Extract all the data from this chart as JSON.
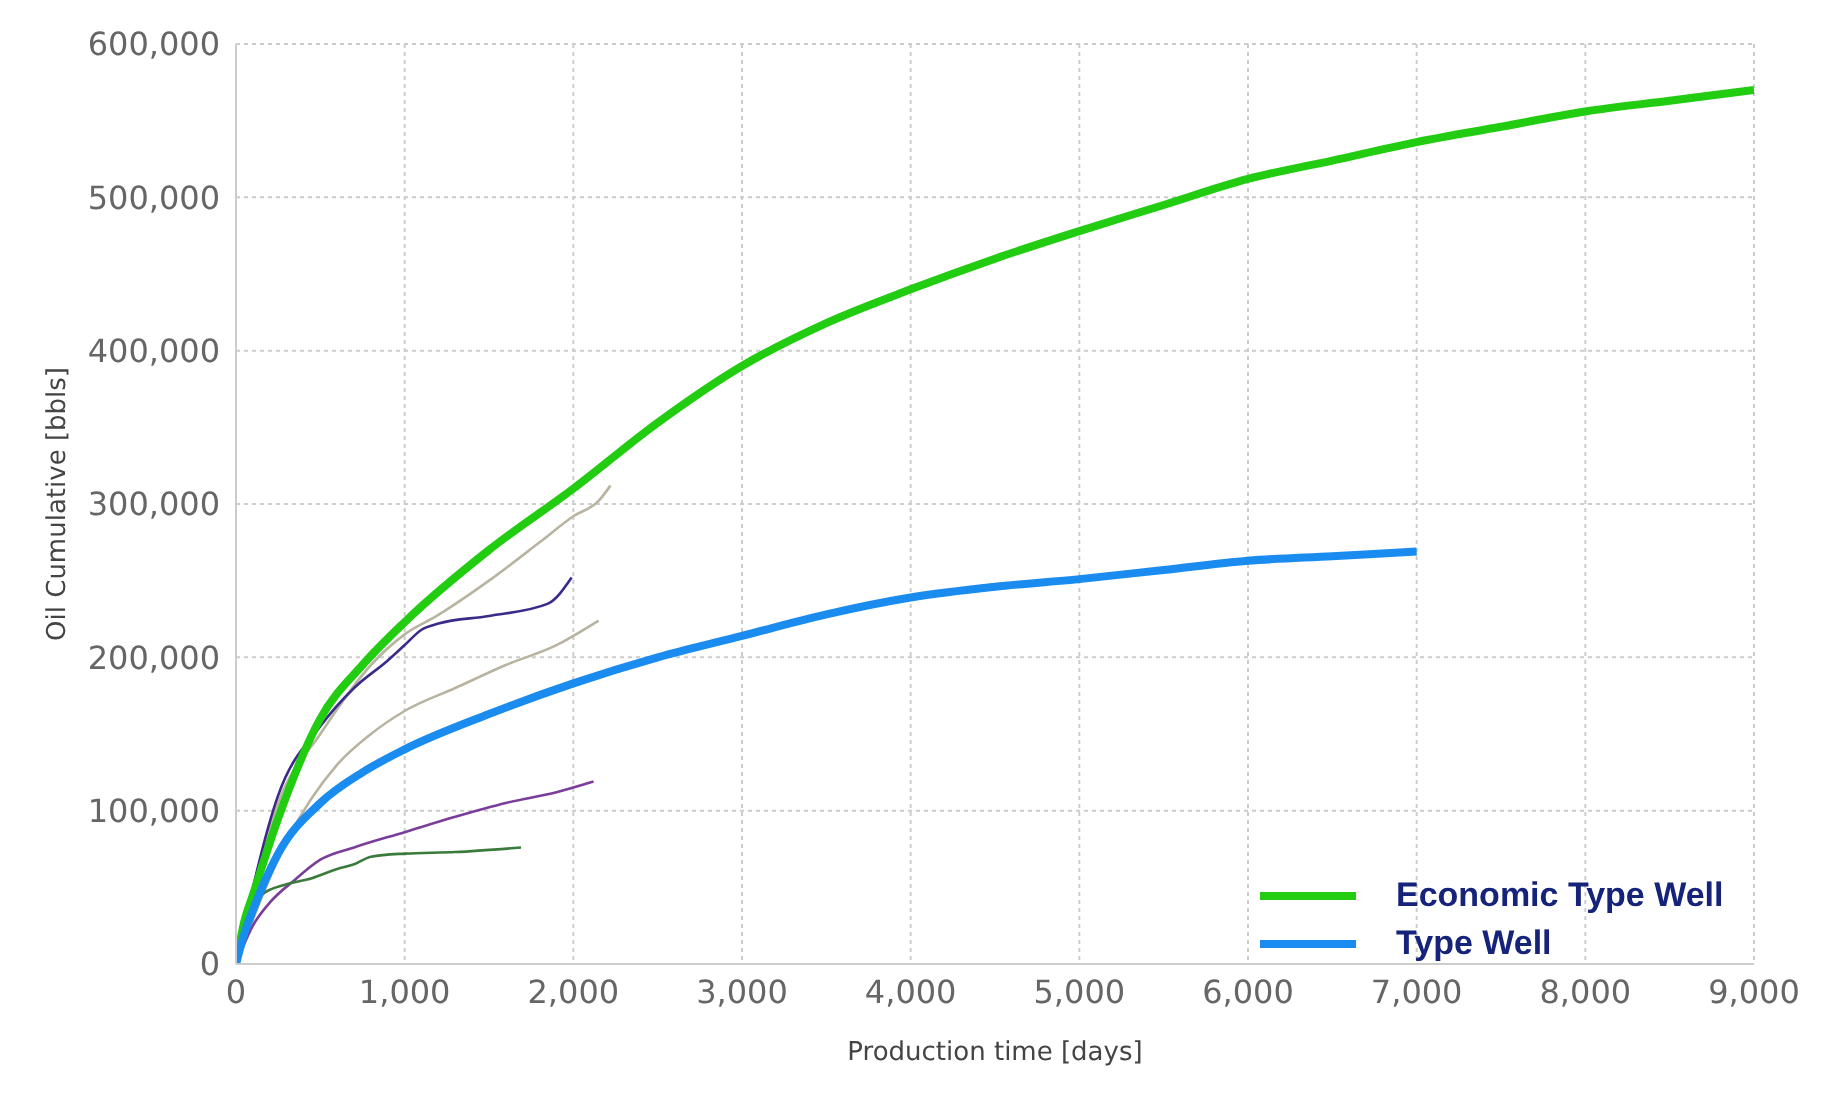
{
  "chart_data": {
    "type": "line",
    "xlabel": "Production time [days]",
    "ylabel": "Oil Cumulative [bbls]",
    "xlim": [
      0,
      9000
    ],
    "xticks": [
      {
        "value": 0,
        "label": "0"
      },
      {
        "value": 1000,
        "label": "1,000"
      },
      {
        "value": 2000,
        "label": "2,000"
      },
      {
        "value": 3000,
        "label": "3,000"
      },
      {
        "value": 4000,
        "label": "4,000"
      },
      {
        "value": 5000,
        "label": "5,000"
      },
      {
        "value": 6000,
        "label": "6,000"
      },
      {
        "value": 7000,
        "label": "7,000"
      },
      {
        "value": 8000,
        "label": "8,000"
      },
      {
        "value": 9000,
        "label": "9,000"
      }
    ],
    "ylim": [
      0,
      600000
    ],
    "yticks": [
      {
        "value": 0,
        "label": "0"
      },
      {
        "value": 100000,
        "label": "100,000"
      },
      {
        "value": 200000,
        "label": "200,000"
      },
      {
        "value": 300000,
        "label": "300,000"
      },
      {
        "value": 400000,
        "label": "400,000"
      },
      {
        "value": 500000,
        "label": "500,000"
      },
      {
        "value": 600000,
        "label": "600,000"
      }
    ],
    "grid": true,
    "legend": "bottom right",
    "marker": "none",
    "line_style": "solid",
    "series": [
      {
        "color": "#b8b4a0",
        "x": [
          0,
          250,
          500,
          800,
          1000,
          1190,
          1500,
          1800,
          2000,
          2150,
          2220
        ],
        "values": [
          0,
          105000,
          150000,
          195000,
          215000,
          227000,
          250000,
          275000,
          292000,
          302000,
          312000
        ]
      },
      {
        "color": "#3c2a8a",
        "x": [
          0,
          250,
          500,
          700,
          900,
          1000,
          1100,
          1200,
          1500,
          1850,
          1990
        ],
        "values": [
          0,
          110000,
          155000,
          180000,
          198000,
          208000,
          218000,
          222000,
          227000,
          235000,
          252000
        ]
      },
      {
        "color": "#b8b4a0",
        "x": [
          0,
          300,
          600,
          800,
          1000,
          1300,
          1600,
          1900,
          2150
        ],
        "values": [
          0,
          80000,
          130000,
          150000,
          165000,
          180000,
          195000,
          208000,
          224000
        ]
      },
      {
        "color": "#7a3d9a",
        "x": [
          0,
          100,
          200,
          350,
          500,
          700,
          1000,
          1300,
          1600,
          1900,
          2120
        ],
        "values": [
          0,
          25000,
          40000,
          55000,
          68000,
          76000,
          86000,
          96000,
          105000,
          112000,
          119000
        ]
      },
      {
        "color": "#3a7a3a",
        "x": [
          0,
          80,
          150,
          300,
          450,
          600,
          700,
          800,
          1000,
          1300,
          1690
        ],
        "values": [
          0,
          30000,
          45000,
          52000,
          56000,
          62000,
          65000,
          70000,
          72000,
          73000,
          76000
        ]
      },
      {
        "name": "Economic Type Well",
        "color": "#22cc11",
        "x": [
          0,
          50,
          100,
          250,
          500,
          750,
          1000,
          1500,
          2000,
          2500,
          3000,
          3500,
          4000,
          4500,
          5000,
          5500,
          6000,
          6500,
          7000,
          7500,
          8000,
          8500,
          9000
        ],
        "values": [
          0,
          28000,
          45000,
          95000,
          160000,
          195000,
          223000,
          270000,
          310000,
          353000,
          390000,
          418000,
          440000,
          460000,
          478000,
          495000,
          512000,
          524000,
          536000,
          546000,
          556000,
          563000,
          570000
        ]
      },
      {
        "name": "Type Well",
        "color": "#1a8cf0",
        "x": [
          0,
          50,
          100,
          250,
          500,
          750,
          1000,
          1500,
          2000,
          2500,
          3000,
          3500,
          4000,
          4500,
          5000,
          5500,
          6000,
          6500,
          7000
        ],
        "values": [
          0,
          20000,
          35000,
          72000,
          105000,
          125000,
          140000,
          163000,
          183000,
          200000,
          214000,
          228000,
          239000,
          246000,
          251000,
          257000,
          263000,
          266000,
          269000
        ]
      }
    ]
  }
}
